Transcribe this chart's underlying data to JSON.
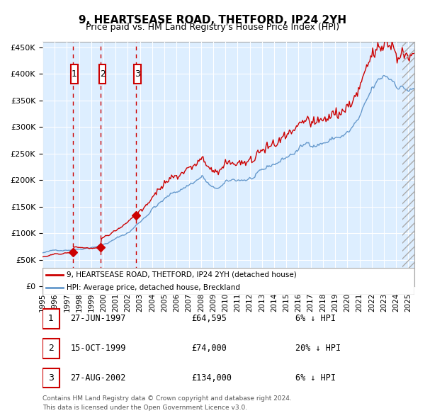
{
  "title": "9, HEARTSEASE ROAD, THETFORD, IP24 2YH",
  "subtitle": "Price paid vs. HM Land Registry's House Price Index (HPI)",
  "legend_property": "9, HEARTSEASE ROAD, THETFORD, IP24 2YH (detached house)",
  "legend_hpi": "HPI: Average price, detached house, Breckland",
  "footer1": "Contains HM Land Registry data © Crown copyright and database right 2024.",
  "footer2": "This data is licensed under the Open Government Licence v3.0.",
  "transactions": [
    {
      "num": 1,
      "date": "27-JUN-1997",
      "price": 64595,
      "pct": "6%",
      "dir": "↓"
    },
    {
      "num": 2,
      "date": "15-OCT-1999",
      "price": 74000,
      "pct": "20%",
      "dir": "↓"
    },
    {
      "num": 3,
      "date": "27-AUG-2002",
      "price": 134000,
      "pct": "6%",
      "dir": "↓"
    }
  ],
  "transaction_dates_decimal": [
    1997.486,
    1999.789,
    2002.647
  ],
  "transaction_prices": [
    64595,
    74000,
    134000
  ],
  "property_color": "#cc0000",
  "hpi_color": "#6699cc",
  "bg_color": "#ddeeff",
  "plot_bg": "#ddeeff",
  "grid_color": "#ffffff",
  "vline_color": "#cc0000",
  "marker_color": "#cc0000",
  "box_color": "#cc0000",
  "ylim": [
    0,
    460000
  ],
  "yticks": [
    0,
    50000,
    100000,
    150000,
    200000,
    250000,
    300000,
    350000,
    400000,
    450000
  ],
  "xlim_start": 1995.0,
  "xlim_end": 2025.5,
  "xticks": [
    1995,
    1996,
    1997,
    1998,
    1999,
    2000,
    2001,
    2002,
    2003,
    2004,
    2005,
    2006,
    2007,
    2008,
    2009,
    2010,
    2011,
    2012,
    2013,
    2014,
    2015,
    2016,
    2017,
    2018,
    2019,
    2020,
    2021,
    2022,
    2023,
    2024,
    2025
  ]
}
